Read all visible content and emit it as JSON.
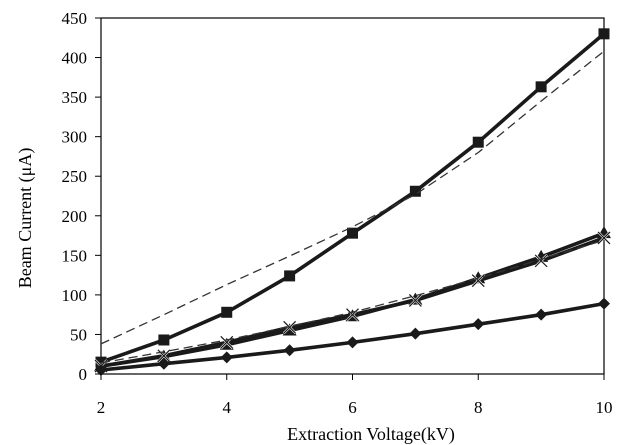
{
  "chart_data": {
    "type": "line",
    "title": "",
    "xlabel": "Extraction Voltage(kV)",
    "ylabel": "Beam Current (μA)",
    "xlim": [
      2,
      10
    ],
    "ylim": [
      0,
      450
    ],
    "xticks": [
      2,
      4,
      6,
      8,
      10
    ],
    "yticks": [
      0,
      50,
      100,
      150,
      200,
      250,
      300,
      350,
      400,
      450
    ],
    "grid": false,
    "legend": "none",
    "series": [
      {
        "marker": "square",
        "style": "solid",
        "color": "#1a1a1a",
        "x": [
          2,
          3,
          4,
          5,
          6,
          7,
          8,
          9,
          10
        ],
        "y": [
          15,
          43,
          78,
          124,
          178,
          231,
          293,
          363,
          430
        ]
      },
      {
        "marker": "triangle",
        "style": "solid",
        "color": "#1a1a1a",
        "x": [
          2,
          3,
          4,
          5,
          6,
          7,
          8,
          9,
          10
        ],
        "y": [
          10,
          22,
          37,
          55,
          73,
          94,
          121,
          148,
          178
        ]
      },
      {
        "marker": "x",
        "style": "solid",
        "color": "#1a1a1a",
        "x": [
          2,
          3,
          4,
          5,
          6,
          7,
          8,
          9,
          10
        ],
        "y": [
          10,
          23,
          40,
          59,
          75,
          93,
          118,
          143,
          172
        ]
      },
      {
        "marker": "diamond",
        "style": "solid",
        "color": "#1a1a1a",
        "x": [
          2,
          3,
          4,
          5,
          6,
          7,
          8,
          9,
          10
        ],
        "y": [
          5,
          13,
          21,
          30,
          40,
          51,
          63,
          75,
          89
        ]
      },
      {
        "marker": "none",
        "style": "dashed",
        "color": "#333333",
        "x": [
          2,
          3,
          4,
          5,
          6,
          7,
          8,
          9,
          10
        ],
        "y": [
          38,
          75,
          113,
          149,
          186,
          227,
          280,
          345,
          408
        ]
      },
      {
        "marker": "none",
        "style": "dashed",
        "color": "#333333",
        "x": [
          2,
          3,
          4,
          5,
          6,
          7,
          8,
          9,
          10
        ],
        "y": [
          14,
          28,
          43,
          60,
          78,
          99,
          121,
          145,
          169
        ]
      }
    ]
  }
}
